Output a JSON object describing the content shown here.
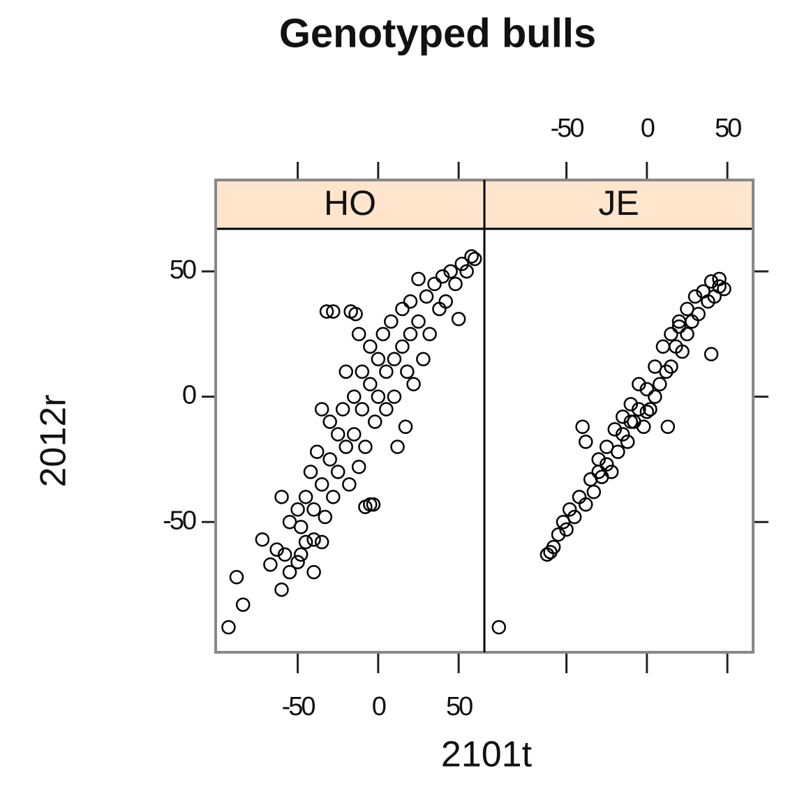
{
  "chart_data": {
    "type": "scatter",
    "title": "Genotyped bulls",
    "xlabel": "2101t",
    "ylabel": "2012r",
    "xlim": [
      -101,
      66
    ],
    "ylim": [
      -102,
      67
    ],
    "xticks": [
      -50,
      0,
      50
    ],
    "yticks": [
      -50,
      0,
      50
    ],
    "color": "#000000",
    "strip_color": "#ffe5cc",
    "panels": [
      {
        "name": "HO",
        "x": [
          -93,
          -88,
          -84,
          -60,
          -72,
          -67,
          -63,
          -58,
          -55,
          -50,
          -45,
          -40,
          -60,
          -55,
          -50,
          -48,
          -45,
          -42,
          -40,
          -38,
          -35,
          -33,
          -30,
          -28,
          -25,
          -25,
          -22,
          -20,
          -18,
          -15,
          -15,
          -12,
          -10,
          -10,
          -8,
          -5,
          -5,
          -3,
          -2,
          0,
          0,
          3,
          5,
          5,
          8,
          10,
          10,
          12,
          15,
          15,
          18,
          20,
          20,
          22,
          25,
          25,
          28,
          30,
          32,
          35,
          38,
          40,
          42,
          45,
          48,
          50,
          52,
          55,
          58,
          60,
          -32,
          -28,
          -17,
          -14,
          -12,
          -20,
          -30,
          -35,
          -8,
          -5,
          17,
          -40,
          -48,
          -35
        ],
        "y": [
          -92,
          -72,
          -83,
          -77,
          -57,
          -67,
          -61,
          -63,
          -70,
          -66,
          -58,
          -57,
          -40,
          -50,
          -45,
          -52,
          -40,
          -30,
          -45,
          -22,
          -35,
          -48,
          -25,
          -40,
          -15,
          -30,
          -5,
          -20,
          -35,
          0,
          -15,
          -28,
          10,
          -5,
          -20,
          20,
          5,
          -43,
          -10,
          15,
          0,
          25,
          -5,
          10,
          30,
          15,
          0,
          -20,
          35,
          20,
          10,
          38,
          25,
          5,
          30,
          47,
          15,
          40,
          25,
          45,
          35,
          48,
          38,
          50,
          45,
          31,
          53,
          50,
          56,
          55,
          34,
          34,
          34,
          33,
          25,
          10,
          -10,
          -5,
          -44,
          -43,
          -12,
          -70,
          -63,
          -58
        ]
      },
      {
        "name": "JE",
        "x": [
          -92,
          -62,
          -60,
          -58,
          -55,
          -52,
          -50,
          -48,
          -45,
          -42,
          -40,
          -38,
          -38,
          -35,
          -33,
          -30,
          -28,
          -25,
          -25,
          -22,
          -20,
          -18,
          -15,
          -15,
          -12,
          -10,
          -8,
          -5,
          -5,
          -2,
          0,
          2,
          5,
          5,
          8,
          10,
          12,
          13,
          15,
          15,
          18,
          20,
          22,
          25,
          25,
          28,
          30,
          32,
          35,
          38,
          40,
          42,
          45,
          45,
          48,
          40,
          20,
          0,
          -30,
          -10
        ],
        "y": [
          -92,
          -63,
          -62,
          -60,
          -55,
          -50,
          -53,
          -45,
          -48,
          -40,
          -12,
          -43,
          -18,
          -33,
          -38,
          -25,
          -32,
          -20,
          -27,
          -30,
          -13,
          -22,
          -8,
          -15,
          -18,
          -3,
          -10,
          5,
          -5,
          -12,
          3,
          -5,
          12,
          0,
          5,
          20,
          10,
          -12,
          25,
          12,
          20,
          30,
          18,
          35,
          25,
          30,
          40,
          33,
          42,
          38,
          46,
          40,
          47,
          44,
          43,
          17,
          28,
          -6,
          -30,
          -10
        ]
      }
    ]
  }
}
